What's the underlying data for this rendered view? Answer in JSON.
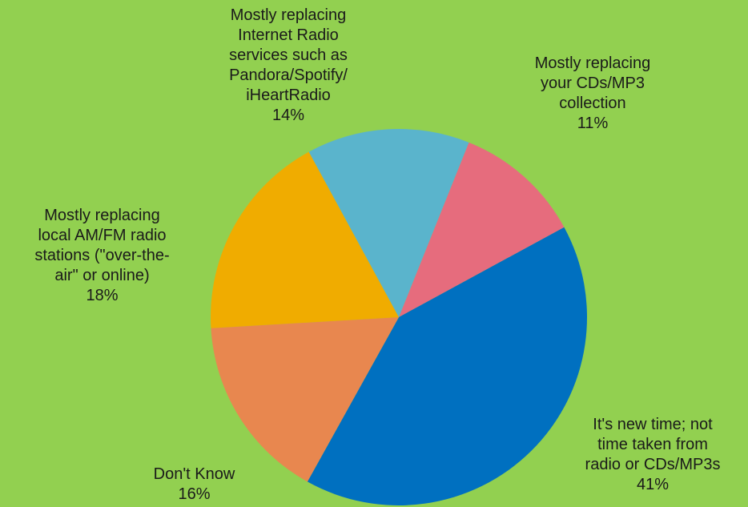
{
  "chart_data": {
    "type": "pie",
    "slices": [
      {
        "label": "Mostly replacing your CDs/MP3 collection",
        "label_lines": [
          "Mostly replacing",
          "your CDs/MP3",
          "collection"
        ],
        "value": 11,
        "value_label": "11%",
        "color": "#e66c7d"
      },
      {
        "label": "It's new time; not time taken from radio or CDs/MP3s",
        "label_lines": [
          "It's new time; not",
          "time taken from",
          "radio or CDs/MP3s"
        ],
        "value": 41,
        "value_label": "41%",
        "color": "#0070c0"
      },
      {
        "label": "Don't Know",
        "label_lines": [
          "Don't Know"
        ],
        "value": 16,
        "value_label": "16%",
        "color": "#e8874f"
      },
      {
        "label": "Mostly replacing local AM/FM radio stations (\"over-the-air\" or online)",
        "label_lines": [
          "Mostly replacing",
          "local AM/FM radio",
          "stations (\"over-the-",
          "air\" or online)"
        ],
        "value": 18,
        "value_label": "18%",
        "color": "#f0ac00"
      },
      {
        "label": "Mostly replacing Internet Radio services such as Pandora/Spotify/iHeartRadio",
        "label_lines": [
          "Mostly replacing",
          "Internet Radio",
          "services such as",
          "Pandora/Spotify/",
          "iHeartRadio"
        ],
        "value": 14,
        "value_label": "14%",
        "color": "#5ab4cc"
      }
    ]
  }
}
